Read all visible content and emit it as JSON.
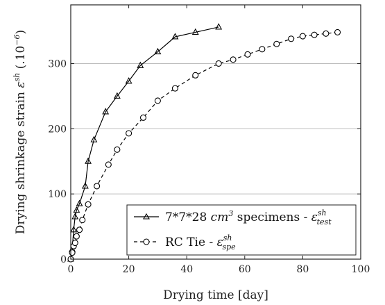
{
  "chart_data": {
    "type": "line",
    "xlabel": "Drying time [day]",
    "ylabel": {
      "main": "Drying shrinkage strain ",
      "symbol": "ε",
      "superscript": "sh",
      "unit_prefix": " (.10",
      "unit_exp": "−6",
      "unit_suffix": ")"
    },
    "xlim": [
      0,
      100
    ],
    "ylim": [
      0,
      390
    ],
    "xticks": [
      0,
      20,
      40,
      60,
      80,
      100
    ],
    "yticks": [
      0,
      100,
      200,
      300
    ],
    "grid": "horizontal",
    "legend_position": "bottom-right",
    "series": [
      {
        "name": "7*7*28 cm3 specimens - ε_test^sh",
        "legend": {
          "text1": "7*7*28 ",
          "math1": "cm",
          "sup1": "3",
          "text2": " specimens - ",
          "symbol": "ε",
          "sup2": "sh",
          "sub2": "test"
        },
        "marker": "triangle",
        "linestyle": "solid",
        "color": "#000000",
        "x": [
          0,
          0.5,
          1,
          1.5,
          2,
          3,
          5,
          6,
          8,
          12,
          16,
          20,
          24,
          30,
          36,
          43,
          51
        ],
        "y": [
          0,
          15,
          45,
          65,
          75,
          85,
          112,
          150,
          183,
          226,
          250,
          273,
          297,
          318,
          341,
          348,
          356
        ]
      },
      {
        "name": "RC Tie - ε_spe^sh",
        "legend": {
          "text1": "RC Tie - ",
          "symbol": "ε",
          "sup2": "sh",
          "sub2": "spe"
        },
        "marker": "circle",
        "linestyle": "dashed",
        "color": "#000000",
        "x": [
          0,
          0.5,
          1,
          1.5,
          2,
          3,
          4,
          6,
          9,
          13,
          16,
          20,
          25,
          30,
          36,
          43,
          51,
          56,
          61,
          66,
          71,
          76,
          80,
          84,
          88,
          92
        ],
        "y": [
          0,
          10,
          20,
          25,
          35,
          45,
          60,
          84,
          112,
          145,
          168,
          193,
          217,
          243,
          262,
          282,
          300,
          306,
          314,
          322,
          330,
          338,
          342,
          344,
          346,
          348
        ]
      }
    ]
  }
}
